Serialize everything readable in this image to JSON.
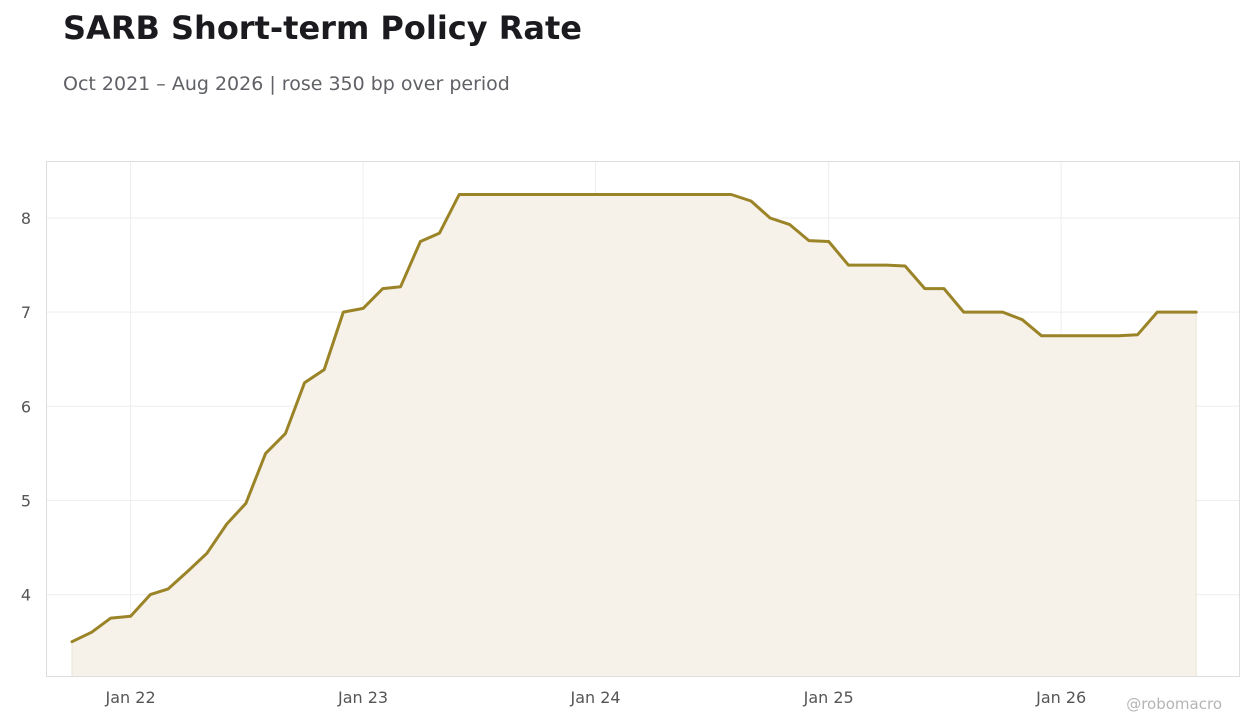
{
  "header": {
    "title": "SARB Short-term Policy Rate",
    "subtitle": "Oct 2021 – Aug 2026 | rose 350 bp over period"
  },
  "watermark": "@robomacro",
  "chart_data": {
    "type": "area",
    "title": "SARB Short-term Policy Rate",
    "subtitle": "Oct 2021 – Aug 2026 | rose 350 bp over period",
    "xlabel": "",
    "ylabel": "",
    "x_range": [
      "2021-08-22",
      "2026-10-08"
    ],
    "ylim": [
      3.13,
      8.6
    ],
    "grid": true,
    "legend": "none",
    "line_color": "#9b8428",
    "fill_color": "#f6f2ea",
    "x_ticks": [
      {
        "date": "2022-01-01",
        "label": "Jan 22"
      },
      {
        "date": "2023-01-01",
        "label": "Jan 23"
      },
      {
        "date": "2024-01-01",
        "label": "Jan 24"
      },
      {
        "date": "2025-01-01",
        "label": "Jan 25"
      },
      {
        "date": "2026-01-01",
        "label": "Jan 26"
      }
    ],
    "y_ticks": [
      {
        "value": 4,
        "label": "4"
      },
      {
        "value": 5,
        "label": "5"
      },
      {
        "value": 6,
        "label": "6"
      },
      {
        "value": 7,
        "label": "7"
      },
      {
        "value": 8,
        "label": "8"
      }
    ],
    "series": [
      {
        "x": [
          "2021-10-01",
          "2021-11-01",
          "2021-12-01",
          "2022-01-01",
          "2022-02-01",
          "2022-03-01",
          "2022-04-01",
          "2022-05-01",
          "2022-06-01",
          "2022-07-01",
          "2022-08-01",
          "2022-09-01",
          "2022-10-01",
          "2022-11-01",
          "2022-12-01",
          "2023-01-01",
          "2023-02-01",
          "2023-03-01",
          "2023-04-01",
          "2023-05-01",
          "2023-06-01",
          "2023-07-01",
          "2023-08-01",
          "2023-09-01",
          "2023-10-01",
          "2023-11-01",
          "2023-12-01",
          "2024-01-01",
          "2024-02-01",
          "2024-03-01",
          "2024-04-01",
          "2024-05-01",
          "2024-06-01",
          "2024-07-01",
          "2024-08-01",
          "2024-09-01",
          "2024-10-01",
          "2024-11-01",
          "2024-12-01",
          "2025-01-01",
          "2025-02-01",
          "2025-03-01",
          "2025-04-01",
          "2025-05-01",
          "2025-06-01",
          "2025-07-01",
          "2025-08-01",
          "2025-09-01",
          "2025-10-01",
          "2025-11-01",
          "2025-12-01",
          "2026-01-01",
          "2026-02-01",
          "2026-03-01",
          "2026-04-01",
          "2026-05-01",
          "2026-06-01",
          "2026-07-01",
          "2026-08-01"
        ],
        "values": [
          3.5,
          3.6,
          3.75,
          3.77,
          4.0,
          4.06,
          4.25,
          4.44,
          4.75,
          4.97,
          5.5,
          5.71,
          6.25,
          6.39,
          7.0,
          7.04,
          7.25,
          7.27,
          7.75,
          7.84,
          8.25,
          8.25,
          8.25,
          8.25,
          8.25,
          8.25,
          8.25,
          8.25,
          8.25,
          8.25,
          8.25,
          8.25,
          8.25,
          8.25,
          8.25,
          8.18,
          8.0,
          7.93,
          7.76,
          7.75,
          7.5,
          7.5,
          7.5,
          7.49,
          7.25,
          7.25,
          7.0,
          7.0,
          7.0,
          6.92,
          6.75,
          6.75,
          6.75,
          6.75,
          6.75,
          6.76,
          7.0,
          7.0,
          7.0
        ]
      }
    ]
  }
}
